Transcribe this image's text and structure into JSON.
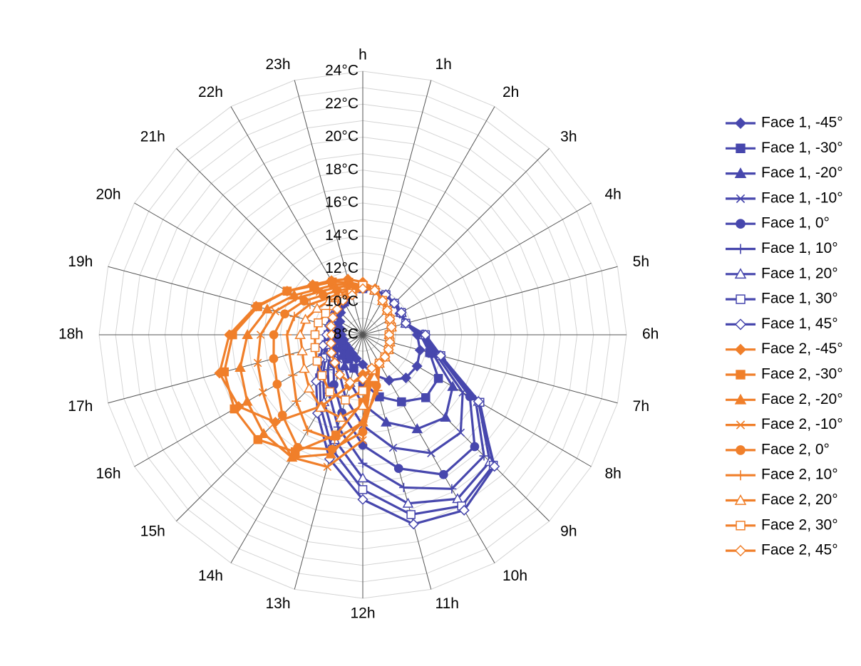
{
  "chart_data": {
    "type": "radar",
    "axis_title": "h",
    "categories": [
      "h",
      "1h",
      "2h",
      "3h",
      "4h",
      "5h",
      "6h",
      "7h",
      "8h",
      "9h",
      "10h",
      "11h",
      "12h",
      "13h",
      "14h",
      "15h",
      "16h",
      "17h",
      "18h",
      "19h",
      "20h",
      "21h",
      "22h",
      "23h"
    ],
    "radial_ticks": [
      "8°C",
      "10°C",
      "12°C",
      "14°C",
      "16°C",
      "18°C",
      "20°C",
      "22°C",
      "24°C"
    ],
    "rlim": [
      8,
      24
    ],
    "grid": true,
    "legend_position": "right",
    "colors": {
      "face1": "#4747ad",
      "face2": "#f07f2a"
    },
    "series": [
      {
        "name": "Face 1, -45°",
        "face": 1,
        "marker": "diamond-filled",
        "values": [
          10.8,
          10.8,
          10.8,
          10.7,
          10.6,
          10.7,
          11.3,
          11.6,
          11.8,
          11.7,
          11.2,
          10.5,
          9.8,
          9.5,
          9.3,
          9.2,
          9.2,
          9.2,
          9.3,
          9.4,
          9.6,
          9.9,
          10.2,
          10.5
        ]
      },
      {
        "name": "Face 1, -30°",
        "face": 1,
        "marker": "square-filled",
        "values": [
          10.8,
          10.8,
          10.8,
          10.7,
          10.7,
          10.7,
          11.5,
          12.2,
          13.3,
          13.4,
          12.7,
          11.9,
          10.9,
          10.1,
          9.7,
          9.5,
          9.4,
          9.4,
          9.5,
          9.6,
          9.8,
          10.0,
          10.3,
          10.6
        ]
      },
      {
        "name": "Face 1, -20°",
        "face": 1,
        "marker": "triangle-filled",
        "values": [
          10.9,
          10.8,
          10.8,
          10.7,
          10.7,
          10.7,
          11.6,
          12.4,
          14.3,
          15.1,
          14.6,
          13.5,
          12.2,
          11.0,
          10.2,
          9.8,
          9.6,
          9.6,
          9.6,
          9.7,
          9.9,
          10.1,
          10.3,
          10.6
        ]
      },
      {
        "name": "Face 1, -10°",
        "face": 1,
        "marker": "x",
        "values": [
          10.9,
          10.8,
          10.8,
          10.7,
          10.7,
          10.7,
          11.7,
          12.6,
          15.0,
          16.4,
          16.3,
          15.1,
          13.5,
          12.0,
          10.8,
          10.1,
          9.8,
          9.7,
          9.7,
          9.8,
          10.0,
          10.2,
          10.4,
          10.7
        ]
      },
      {
        "name": "Face 1, 0°",
        "face": 1,
        "marker": "circle-filled",
        "values": [
          10.9,
          10.8,
          10.8,
          10.7,
          10.7,
          10.7,
          11.7,
          12.8,
          15.5,
          17.6,
          17.8,
          16.4,
          14.7,
          12.9,
          11.5,
          10.5,
          10.0,
          9.8,
          9.8,
          9.9,
          10.0,
          10.2,
          10.4,
          10.7
        ]
      },
      {
        "name": "Face 1, 10°",
        "face": 1,
        "marker": "plus",
        "values": [
          10.9,
          10.8,
          10.8,
          10.7,
          10.7,
          10.7,
          11.7,
          12.8,
          15.9,
          18.4,
          18.8,
          17.6,
          15.8,
          13.8,
          12.1,
          11.0,
          10.3,
          10.0,
          9.9,
          9.9,
          10.1,
          10.3,
          10.5,
          10.7
        ]
      },
      {
        "name": "Face 1, 20°",
        "face": 1,
        "marker": "triangle-open",
        "values": [
          10.9,
          10.8,
          10.8,
          10.7,
          10.7,
          10.7,
          11.7,
          12.9,
          16.1,
          18.9,
          19.5,
          18.6,
          16.7,
          14.6,
          12.7,
          11.4,
          10.6,
          10.2,
          10.0,
          10.0,
          10.1,
          10.3,
          10.5,
          10.7
        ]
      },
      {
        "name": "Face 1, 30°",
        "face": 1,
        "marker": "square-open",
        "values": [
          10.9,
          10.8,
          10.8,
          10.7,
          10.7,
          10.7,
          11.8,
          12.9,
          16.2,
          19.2,
          20.0,
          19.3,
          17.4,
          15.2,
          13.1,
          11.7,
          10.8,
          10.3,
          10.1,
          10.0,
          10.1,
          10.3,
          10.5,
          10.7
        ]
      },
      {
        "name": "Face 1, 45°",
        "face": 1,
        "marker": "diamond-open",
        "values": [
          10.9,
          10.8,
          10.8,
          10.7,
          10.7,
          10.7,
          11.8,
          12.9,
          16.1,
          19.3,
          20.3,
          19.9,
          18.0,
          15.8,
          13.5,
          12.0,
          11.0,
          10.5,
          10.2,
          10.1,
          10.2,
          10.3,
          10.5,
          10.8
        ]
      },
      {
        "name": "Face 2, -45°",
        "face": 2,
        "marker": "diamond-filled",
        "values": [
          11.2,
          10.9,
          10.4,
          10.1,
          9.9,
          9.8,
          9.6,
          9.7,
          9.8,
          9.9,
          10.0,
          10.2,
          10.4,
          11.2,
          13.0,
          15.5,
          16.7,
          17.0,
          16.1,
          14.7,
          13.3,
          12.3,
          11.8,
          11.5
        ]
      },
      {
        "name": "Face 2, -30°",
        "face": 2,
        "marker": "square-filled",
        "values": [
          11.0,
          10.8,
          10.4,
          10.1,
          9.9,
          9.8,
          9.6,
          9.7,
          9.8,
          9.9,
          10.0,
          10.2,
          12.1,
          14.3,
          16.2,
          17.0,
          17.0,
          16.7,
          15.9,
          14.6,
          13.3,
          12.2,
          11.7,
          11.3
        ]
      },
      {
        "name": "Face 2, -20°",
        "face": 2,
        "marker": "triangle-filled",
        "values": [
          11.0,
          10.8,
          10.4,
          10.1,
          9.9,
          9.8,
          9.6,
          9.7,
          9.8,
          9.9,
          10.0,
          10.2,
          13.3,
          15.5,
          16.6,
          16.5,
          16.1,
          15.7,
          15.0,
          14.0,
          12.8,
          11.9,
          11.5,
          11.2
        ]
      },
      {
        "name": "Face 2, -10°",
        "face": 2,
        "marker": "x",
        "values": [
          11.0,
          10.8,
          10.4,
          10.1,
          9.9,
          9.8,
          9.6,
          9.7,
          9.8,
          9.9,
          10.0,
          10.2,
          14.4,
          16.3,
          16.6,
          15.7,
          15.0,
          14.6,
          14.2,
          13.5,
          12.5,
          11.7,
          11.3,
          11.1
        ]
      },
      {
        "name": "Face 2, 0°",
        "face": 2,
        "marker": "circle-filled",
        "values": [
          11.0,
          10.8,
          10.4,
          10.1,
          9.9,
          9.8,
          9.6,
          9.7,
          9.8,
          9.9,
          10.0,
          11.2,
          13.9,
          15.2,
          15.9,
          14.9,
          14.0,
          13.6,
          13.4,
          12.9,
          12.1,
          11.4,
          11.1,
          10.9
        ]
      },
      {
        "name": "Face 2, 10°",
        "face": 2,
        "marker": "plus",
        "values": [
          11.0,
          10.8,
          10.4,
          10.1,
          9.9,
          9.8,
          9.6,
          9.7,
          9.8,
          9.9,
          10.0,
          11.5,
          13.3,
          14.6,
          14.7,
          13.7,
          12.9,
          12.6,
          12.6,
          12.3,
          11.7,
          11.1,
          10.9,
          10.8
        ]
      },
      {
        "name": "Face 2, 20°",
        "face": 2,
        "marker": "triangle-open",
        "values": [
          11.0,
          10.8,
          10.4,
          10.1,
          9.9,
          9.8,
          9.6,
          9.7,
          9.8,
          9.9,
          10.0,
          10.7,
          12.3,
          13.2,
          13.1,
          12.6,
          12.1,
          11.8,
          11.8,
          11.6,
          11.2,
          10.9,
          10.7,
          10.7
        ]
      },
      {
        "name": "Face 2, 30°",
        "face": 2,
        "marker": "square-open",
        "values": [
          11.0,
          10.8,
          10.4,
          10.1,
          9.9,
          9.8,
          9.6,
          9.7,
          9.8,
          9.9,
          10.0,
          10.2,
          11.4,
          12.1,
          12.0,
          11.5,
          11.2,
          11.0,
          10.9,
          10.8,
          10.6,
          10.5,
          10.5,
          10.6
        ]
      },
      {
        "name": "Face 2, 45°",
        "face": 2,
        "marker": "diamond-open",
        "values": [
          10.8,
          10.8,
          10.4,
          10.1,
          9.9,
          9.8,
          9.6,
          9.7,
          9.8,
          9.9,
          10.0,
          10.1,
          10.7,
          11.0,
          10.8,
          10.4,
          10.2,
          10.0,
          9.9,
          10.0,
          10.1,
          10.2,
          10.4,
          10.5
        ]
      }
    ]
  }
}
